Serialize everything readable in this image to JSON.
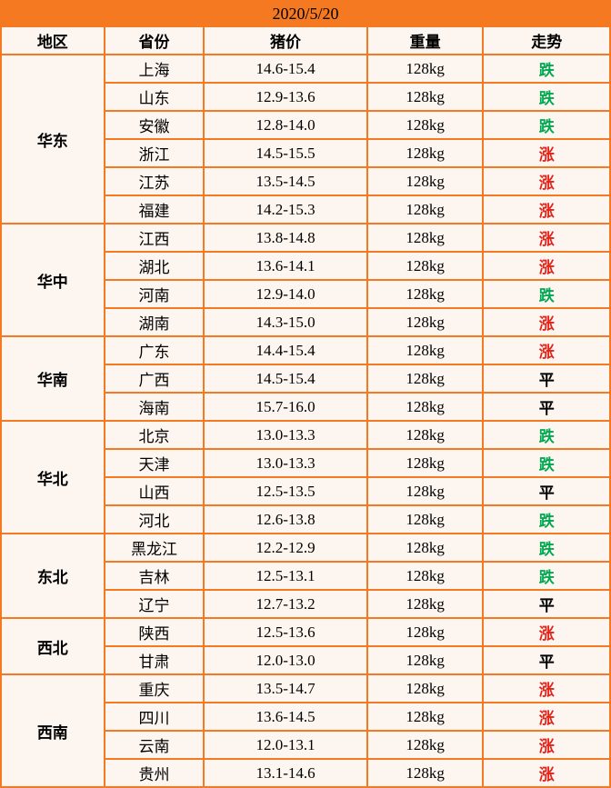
{
  "date": "2020/5/20",
  "headers": {
    "region": "地区",
    "province": "省份",
    "price": "猪价",
    "weight": "重量",
    "trend": "走势"
  },
  "trend_labels": {
    "down": "跌",
    "up": "涨",
    "flat": "平"
  },
  "colors": {
    "border": "#f47921",
    "date_bg": "#f47921",
    "cell_bg": "#fdf6f0",
    "trend_down": "#00a84f",
    "trend_up": "#e2231a",
    "trend_flat": "#000000"
  },
  "regions": [
    {
      "name": "华东",
      "rows": [
        {
          "province": "上海",
          "price": "14.6-15.4",
          "weight": "128kg",
          "trend": "down"
        },
        {
          "province": "山东",
          "price": "12.9-13.6",
          "weight": "128kg",
          "trend": "down"
        },
        {
          "province": "安徽",
          "price": "12.8-14.0",
          "weight": "128kg",
          "trend": "down"
        },
        {
          "province": "浙江",
          "price": "14.5-15.5",
          "weight": "128kg",
          "trend": "up"
        },
        {
          "province": "江苏",
          "price": "13.5-14.5",
          "weight": "128kg",
          "trend": "up"
        },
        {
          "province": "福建",
          "price": "14.2-15.3",
          "weight": "128kg",
          "trend": "up"
        }
      ]
    },
    {
      "name": "华中",
      "rows": [
        {
          "province": "江西",
          "price": "13.8-14.8",
          "weight": "128kg",
          "trend": "up"
        },
        {
          "province": "湖北",
          "price": "13.6-14.1",
          "weight": "128kg",
          "trend": "up"
        },
        {
          "province": "河南",
          "price": "12.9-14.0",
          "weight": "128kg",
          "trend": "down"
        },
        {
          "province": "湖南",
          "price": "14.3-15.0",
          "weight": "128kg",
          "trend": "up"
        }
      ]
    },
    {
      "name": "华南",
      "rows": [
        {
          "province": "广东",
          "price": "14.4-15.4",
          "weight": "128kg",
          "trend": "up"
        },
        {
          "province": "广西",
          "price": "14.5-15.4",
          "weight": "128kg",
          "trend": "flat"
        },
        {
          "province": "海南",
          "price": "15.7-16.0",
          "weight": "128kg",
          "trend": "flat"
        }
      ]
    },
    {
      "name": "华北",
      "rows": [
        {
          "province": "北京",
          "price": "13.0-13.3",
          "weight": "128kg",
          "trend": "down"
        },
        {
          "province": "天津",
          "price": "13.0-13.3",
          "weight": "128kg",
          "trend": "down"
        },
        {
          "province": "山西",
          "price": "12.5-13.5",
          "weight": "128kg",
          "trend": "flat"
        },
        {
          "province": "河北",
          "price": "12.6-13.8",
          "weight": "128kg",
          "trend": "down"
        }
      ]
    },
    {
      "name": "东北",
      "rows": [
        {
          "province": "黑龙江",
          "price": "12.2-12.9",
          "weight": "128kg",
          "trend": "down"
        },
        {
          "province": "吉林",
          "price": "12.5-13.1",
          "weight": "128kg",
          "trend": "down"
        },
        {
          "province": "辽宁",
          "price": "12.7-13.2",
          "weight": "128kg",
          "trend": "flat"
        }
      ]
    },
    {
      "name": "西北",
      "rows": [
        {
          "province": "陕西",
          "price": "12.5-13.6",
          "weight": "128kg",
          "trend": "up"
        },
        {
          "province": "甘肃",
          "price": "12.0-13.0",
          "weight": "128kg",
          "trend": "flat"
        }
      ]
    },
    {
      "name": "西南",
      "rows": [
        {
          "province": "重庆",
          "price": "13.5-14.7",
          "weight": "128kg",
          "trend": "up"
        },
        {
          "province": "四川",
          "price": "13.6-14.5",
          "weight": "128kg",
          "trend": "up"
        },
        {
          "province": "云南",
          "price": "12.0-13.1",
          "weight": "128kg",
          "trend": "up"
        },
        {
          "province": "贵州",
          "price": "13.1-14.6",
          "weight": "128kg",
          "trend": "up"
        }
      ]
    }
  ]
}
